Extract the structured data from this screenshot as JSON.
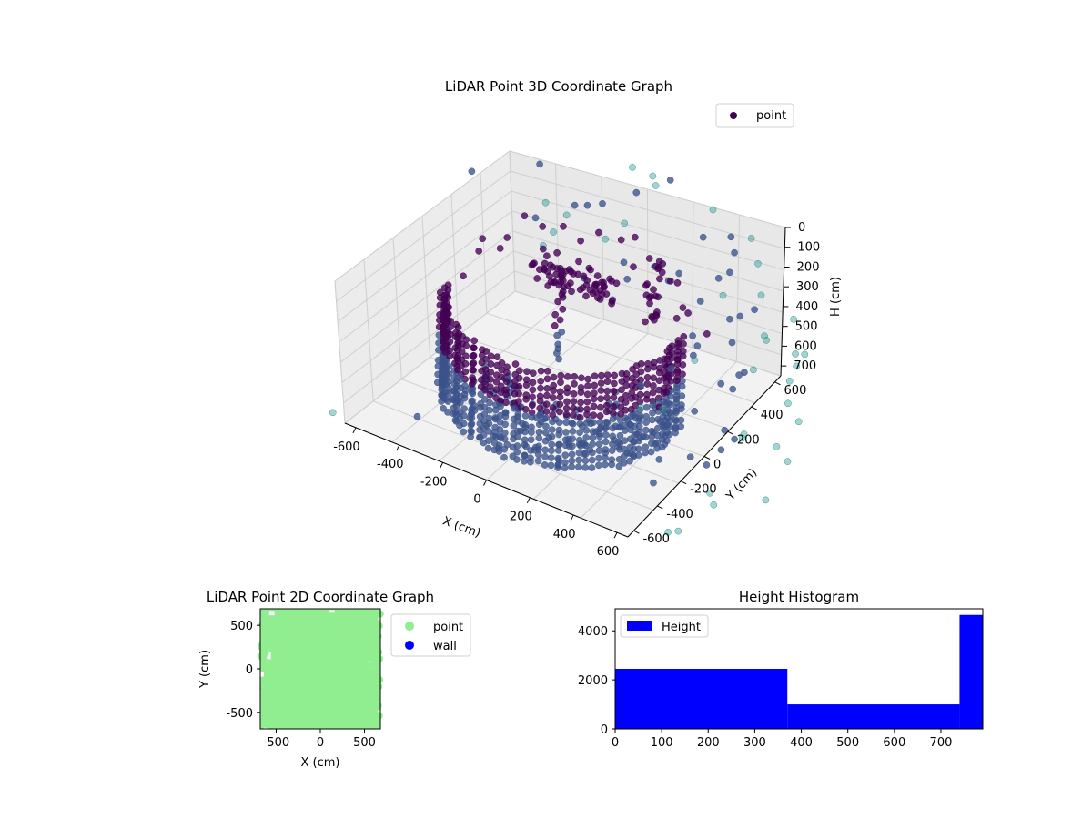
{
  "chart_data": [
    {
      "type": "scatter",
      "projection": "3d",
      "title": "LiDAR Point 3D Coordinate Graph",
      "xlabel": "X (cm)",
      "ylabel": "Y (cm)",
      "zlabel": "H (cm)",
      "xlim": [
        -650,
        650
      ],
      "ylim": [
        -650,
        650
      ],
      "zlim": [
        0,
        750
      ],
      "z_inverted": true,
      "x_ticks": [
        "-600",
        "-400",
        "-200",
        "0",
        "200",
        "400",
        "600"
      ],
      "y_ticks": [
        "-600",
        "-400",
        "-200",
        "0",
        "200",
        "400",
        "600"
      ],
      "z_ticks": [
        "0",
        "100",
        "200",
        "300",
        "400",
        "500",
        "600",
        "700"
      ],
      "legend": {
        "placement": "top-right",
        "entries": [
          "point"
        ]
      },
      "colormap": [
        "#440154",
        "#3b528b",
        "#21918c",
        "#5ec962"
      ],
      "series": [
        {
          "name": "point",
          "description_points": [
            {
              "x": 0,
              "y": 100,
              "h": 180
            },
            {
              "x": 50,
              "y": 80,
              "h": 200
            },
            {
              "x": -50,
              "y": 120,
              "h": 190
            },
            {
              "x": -150,
              "y": 200,
              "h": 200
            },
            {
              "x": 150,
              "y": 150,
              "h": 190
            },
            {
              "x": -600,
              "y": 300,
              "h": 50
            },
            {
              "x": 600,
              "y": -300,
              "h": 600
            },
            {
              "x": -400,
              "y": -500,
              "h": 700
            },
            {
              "x": 200,
              "y": 600,
              "h": 400
            },
            {
              "x": 500,
              "y": 500,
              "h": 100
            }
          ]
        }
      ]
    },
    {
      "type": "scatter",
      "title": "LiDAR Point 2D Coordinate Graph",
      "xlabel": "X (cm)",
      "ylabel": "Y (cm)",
      "xlim": [
        -680,
        680
      ],
      "ylim": [
        -690,
        690
      ],
      "x_ticks": [
        -500,
        0,
        500
      ],
      "y_ticks": [
        -500,
        0,
        500
      ],
      "legend": {
        "placement": "outside-right",
        "entries": [
          "point",
          "wall"
        ]
      },
      "series": [
        {
          "name": "point",
          "color": "#90ee90"
        },
        {
          "name": "wall",
          "color": "#0000ff"
        }
      ]
    },
    {
      "type": "bar",
      "title": "Height Histogram",
      "bins": [
        [
          0,
          370
        ],
        [
          370,
          740
        ],
        [
          740,
          790
        ]
      ],
      "values": [
        2450,
        1000,
        4650
      ],
      "xlim": [
        0,
        790
      ],
      "ylim": [
        0,
        4900
      ],
      "x_ticks": [
        0,
        100,
        200,
        300,
        400,
        500,
        600,
        700
      ],
      "y_ticks": [
        0,
        2000,
        4000
      ],
      "color": "#0000ff",
      "legend": {
        "placement": "top-left",
        "entries": [
          "Height"
        ]
      }
    }
  ]
}
